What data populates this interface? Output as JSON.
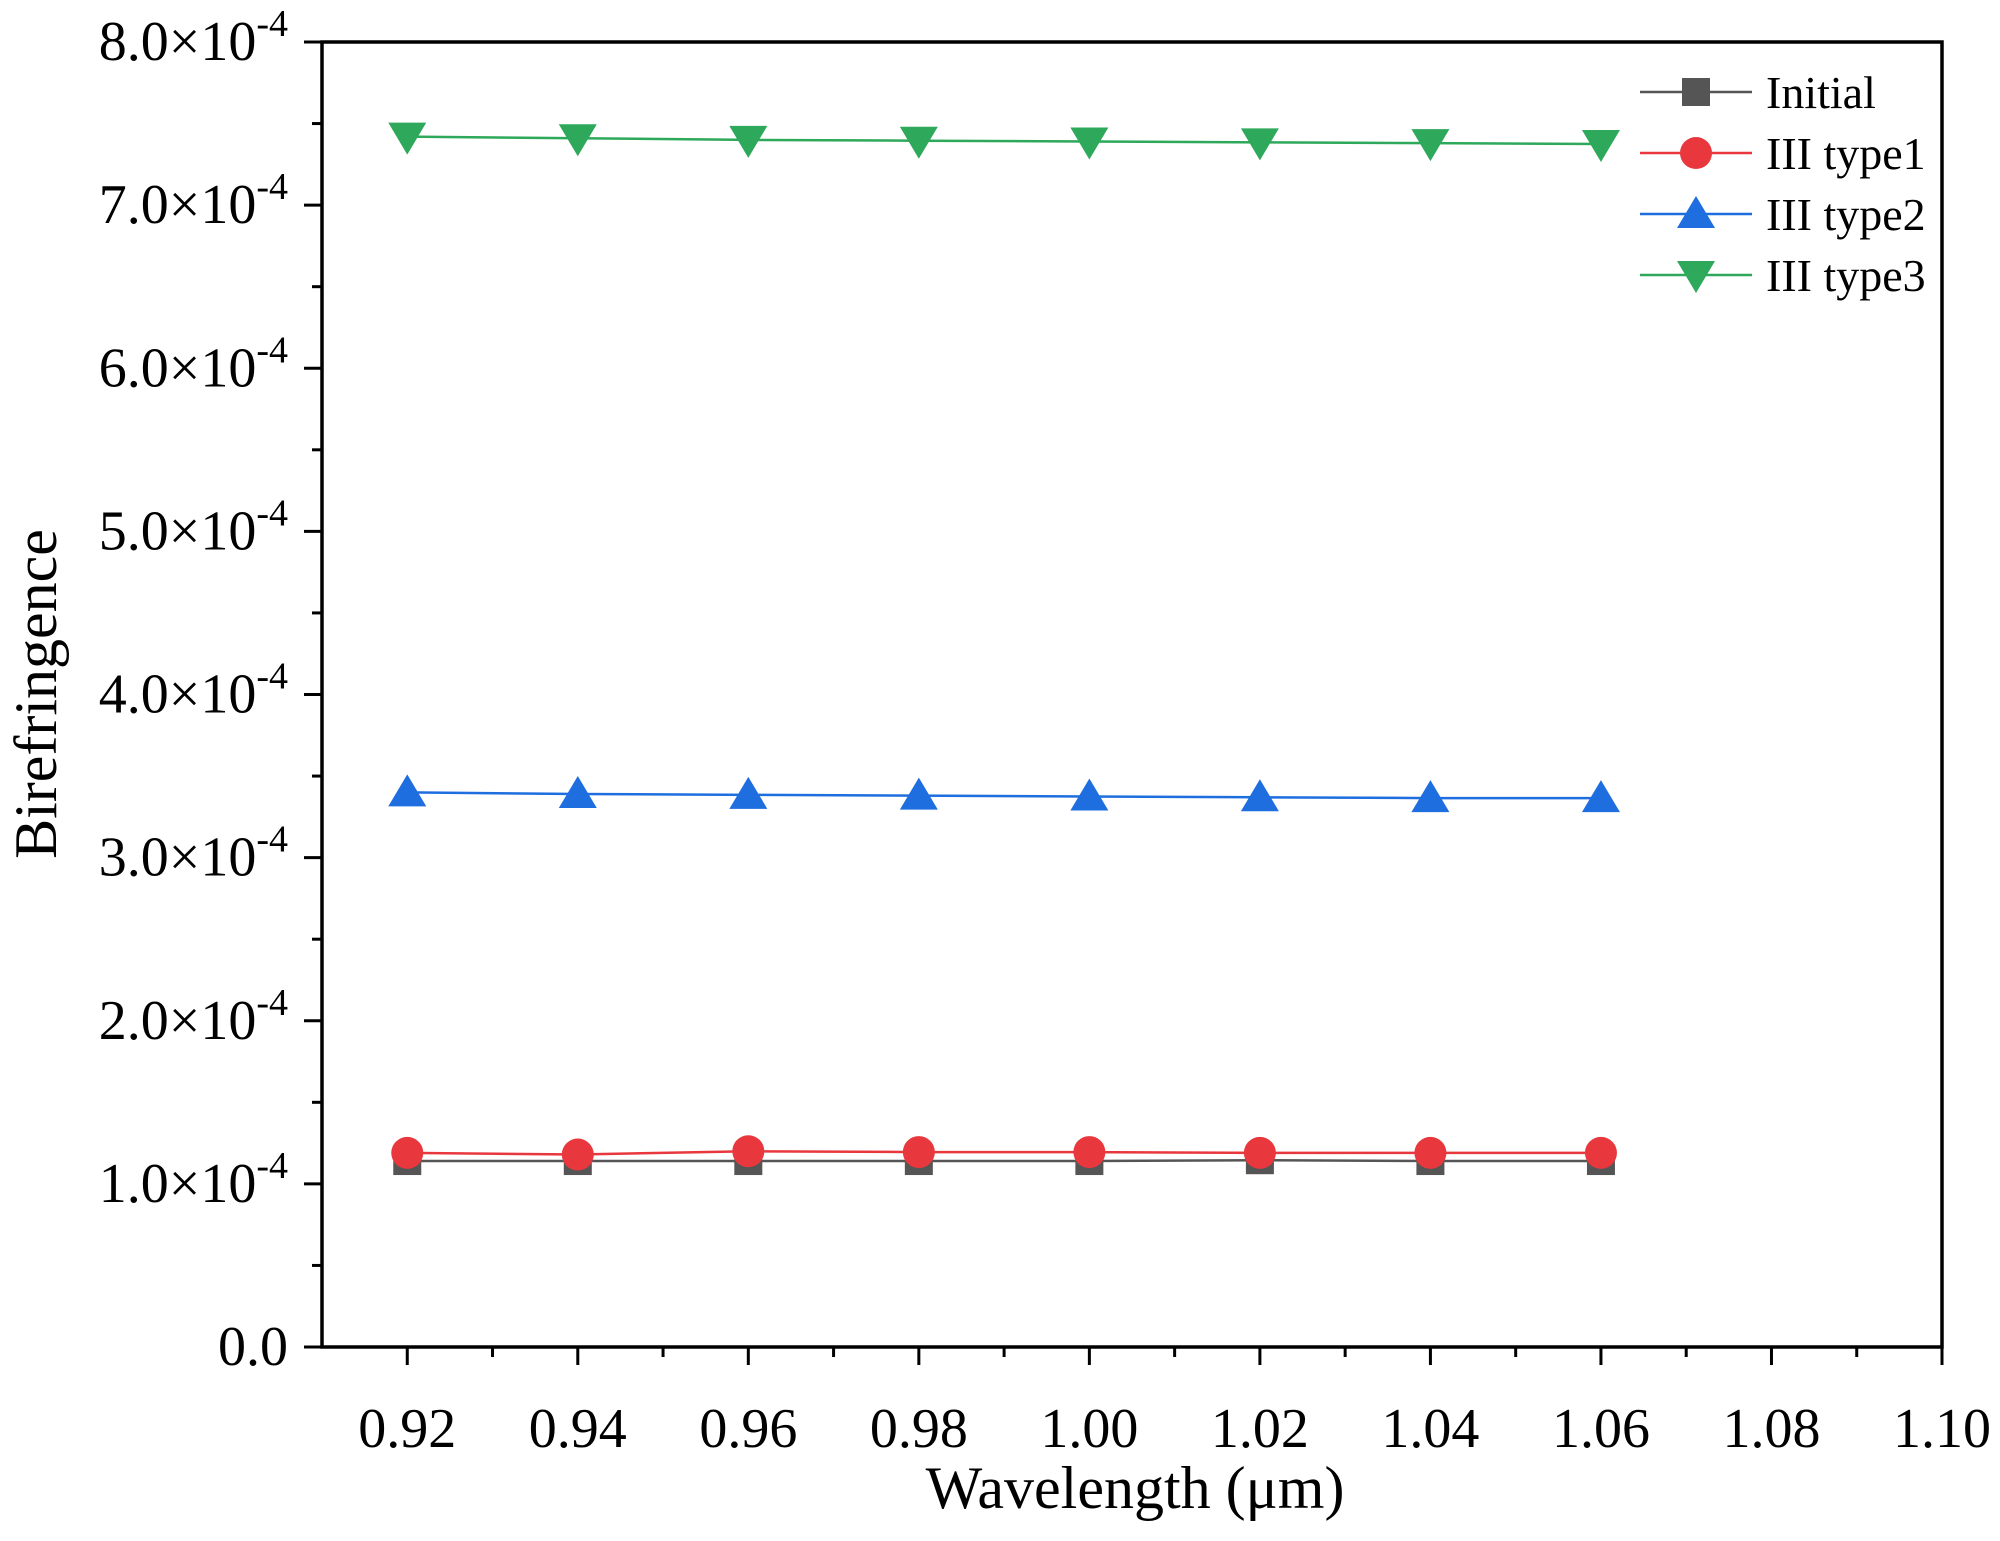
{
  "chart_data": {
    "type": "line",
    "title": "",
    "xlabel": "Wavelength (μm)",
    "ylabel": "Birefringence",
    "xlim": [
      0.91,
      1.1
    ],
    "ylim": [
      0,
      0.0008
    ],
    "x_ticks": [
      {
        "value": 0.92,
        "label": "0.92"
      },
      {
        "value": 0.94,
        "label": "0.94"
      },
      {
        "value": 0.96,
        "label": "0.96"
      },
      {
        "value": 0.98,
        "label": "0.98"
      },
      {
        "value": 1.0,
        "label": "1.00"
      },
      {
        "value": 1.02,
        "label": "1.02"
      },
      {
        "value": 1.04,
        "label": "1.04"
      },
      {
        "value": 1.06,
        "label": "1.06"
      },
      {
        "value": 1.08,
        "label": "1.08"
      },
      {
        "value": 1.1,
        "label": "1.10"
      }
    ],
    "y_ticks": [
      {
        "value": 0,
        "mantissa": "0.0",
        "exponent": ""
      },
      {
        "value": 0.0001,
        "mantissa": "1.0×10",
        "exponent": "-4"
      },
      {
        "value": 0.0002,
        "mantissa": "2.0×10",
        "exponent": "-4"
      },
      {
        "value": 0.0003,
        "mantissa": "3.0×10",
        "exponent": "-4"
      },
      {
        "value": 0.0004,
        "mantissa": "4.0×10",
        "exponent": "-4"
      },
      {
        "value": 0.0005,
        "mantissa": "5.0×10",
        "exponent": "-4"
      },
      {
        "value": 0.0006,
        "mantissa": "6.0×10",
        "exponent": "-4"
      },
      {
        "value": 0.0007,
        "mantissa": "7.0×10",
        "exponent": "-4"
      },
      {
        "value": 0.0008,
        "mantissa": "8.0×10",
        "exponent": "-4"
      }
    ],
    "x": [
      0.92,
      0.94,
      0.96,
      0.98,
      1.0,
      1.02,
      1.04,
      1.06
    ],
    "series": [
      {
        "name": "Initial",
        "color": "#555555",
        "marker": "square",
        "values": [
          0.000114,
          0.000114,
          0.000114,
          0.000114,
          0.000114,
          0.0001145,
          0.000114,
          0.000114
        ]
      },
      {
        "name": "III type1",
        "color": "#e8383d",
        "marker": "circle",
        "values": [
          0.000119,
          0.000118,
          0.00012,
          0.0001195,
          0.0001195,
          0.000119,
          0.000119,
          0.000119
        ]
      },
      {
        "name": "III type2",
        "color": "#1e6ee0",
        "marker": "triangle-up",
        "values": [
          0.00034,
          0.000339,
          0.0003385,
          0.000338,
          0.0003375,
          0.000337,
          0.0003365,
          0.0003365
        ]
      },
      {
        "name": "III type3",
        "color": "#2ea85a",
        "marker": "triangle-down",
        "values": [
          0.000742,
          0.000741,
          0.00074,
          0.0007395,
          0.000739,
          0.0007385,
          0.000738,
          0.0007375
        ]
      }
    ],
    "grid": false,
    "legend_position": "top-right"
  }
}
